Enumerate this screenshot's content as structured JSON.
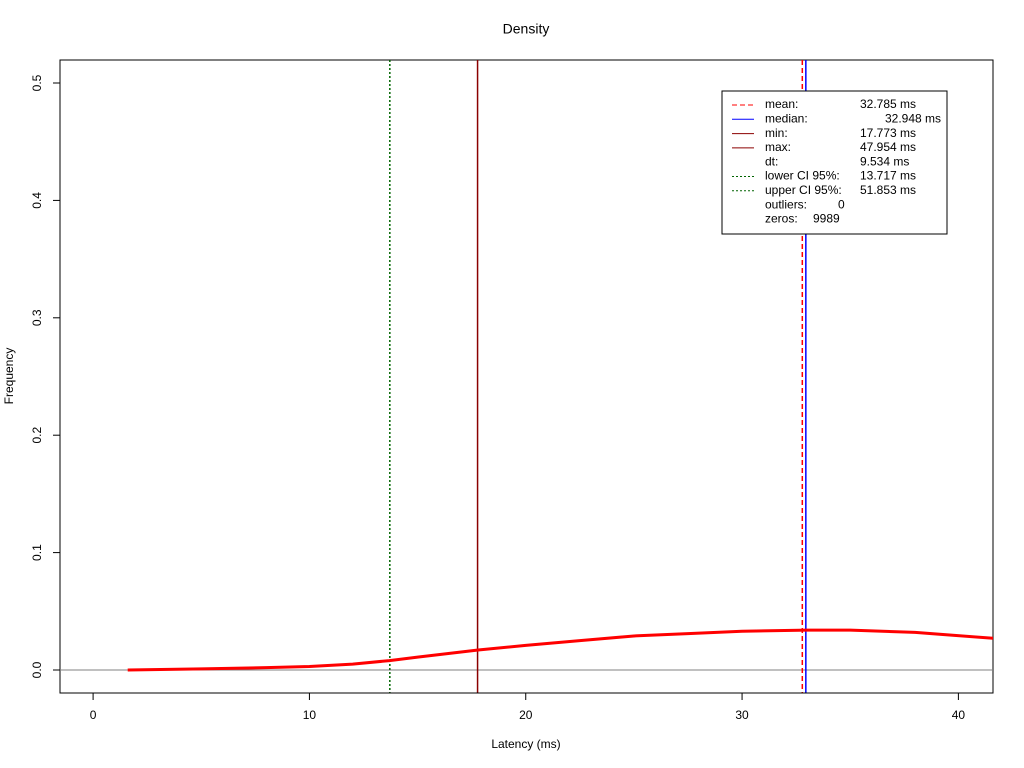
{
  "chart_data": {
    "type": "line",
    "title": "Density",
    "xlabel": "Latency (ms)",
    "ylabel": "Frequency",
    "xlim": [
      -1.53,
      41.6
    ],
    "ylim": [
      -0.0196,
      0.5196
    ],
    "xticks": [
      0,
      10,
      20,
      30,
      40
    ],
    "yticks": [
      {
        "value": 0,
        "label": "0.0"
      },
      0.1,
      0.2,
      0.3,
      0.4,
      0.5
    ],
    "series": [
      {
        "name": "density",
        "color": "#ff0000",
        "x": [
          1.6,
          5,
          8,
          10,
          12,
          13.7,
          15,
          17.8,
          20,
          22.5,
          25,
          27.5,
          30,
          33,
          35,
          38,
          41.6
        ],
        "values": [
          0.0,
          0.001,
          0.002,
          0.003,
          0.005,
          0.008,
          0.011,
          0.017,
          0.021,
          0.025,
          0.029,
          0.031,
          0.033,
          0.034,
          0.034,
          0.032,
          0.027
        ]
      }
    ],
    "baseline_color": "#808080",
    "legend": [
      {
        "name": "mean:",
        "value": 32.785,
        "value_label": "32.785 ms",
        "color": "#ff0000",
        "style": "dashed"
      },
      {
        "name": "median:",
        "value": 32.948,
        "value_label": "32.948 ms",
        "color": "#0000ff",
        "style": "solid"
      },
      {
        "name": "min:",
        "value": 17.773,
        "value_label": "17.773 ms",
        "color": "#8b0000",
        "style": "solid"
      },
      {
        "name": "max:",
        "value": 47.954,
        "value_label": "47.954 ms",
        "color": "#8b0000",
        "style": "solid"
      },
      {
        "name": "dt:",
        "value": 9.534,
        "value_label": "9.534 ms"
      },
      {
        "name": "lower CI 95%:",
        "value": 13.717,
        "value_label": "13.717 ms",
        "color": "#006400",
        "style": "dotted"
      },
      {
        "name": "upper CI 95%:",
        "value": 51.853,
        "value_label": "51.853 ms",
        "color": "#006400",
        "style": "dotted"
      },
      {
        "name": "outliers:",
        "value": 0
      },
      {
        "name": "zeros:",
        "value": 9989
      }
    ]
  }
}
